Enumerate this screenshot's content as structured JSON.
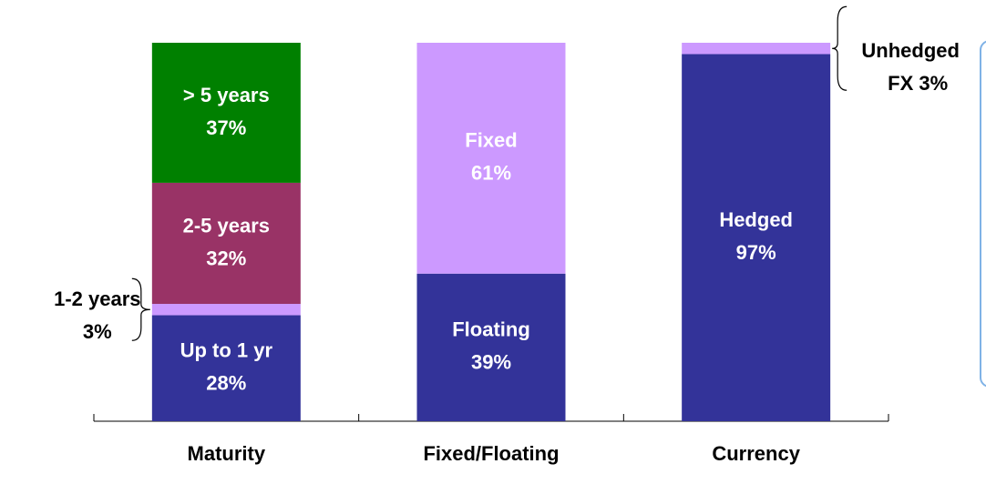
{
  "chart_data": {
    "type": "stacked-bar",
    "ylim": [
      0,
      100
    ],
    "bars": [
      {
        "category": "Maturity",
        "segments": [
          {
            "name": "Up to 1 yr",
            "value": 28,
            "value_label": "28%",
            "color": "#333399"
          },
          {
            "name": "1-2 years",
            "value": 3,
            "value_label": "3%",
            "color": "#cc99ff"
          },
          {
            "name": "2-5 years",
            "value": 32,
            "value_label": "32%",
            "color": "#993366"
          },
          {
            "name": "> 5 years",
            "value": 37,
            "value_label": "37%",
            "color": "#008000"
          }
        ]
      },
      {
        "category": "Fixed/Floating",
        "segments": [
          {
            "name": "Floating",
            "value": 39,
            "value_label": "39%",
            "color": "#333399"
          },
          {
            "name": "Fixed",
            "value": 61,
            "value_label": "61%",
            "color": "#cc99ff"
          }
        ]
      },
      {
        "category": "Currency",
        "segments": [
          {
            "name": "Hedged",
            "value": 97,
            "value_label": "97%",
            "color": "#333399"
          },
          {
            "name": "Unhedged",
            "value": 3,
            "value_label": "FX 3%",
            "color": "#cc99ff"
          }
        ]
      }
    ]
  }
}
